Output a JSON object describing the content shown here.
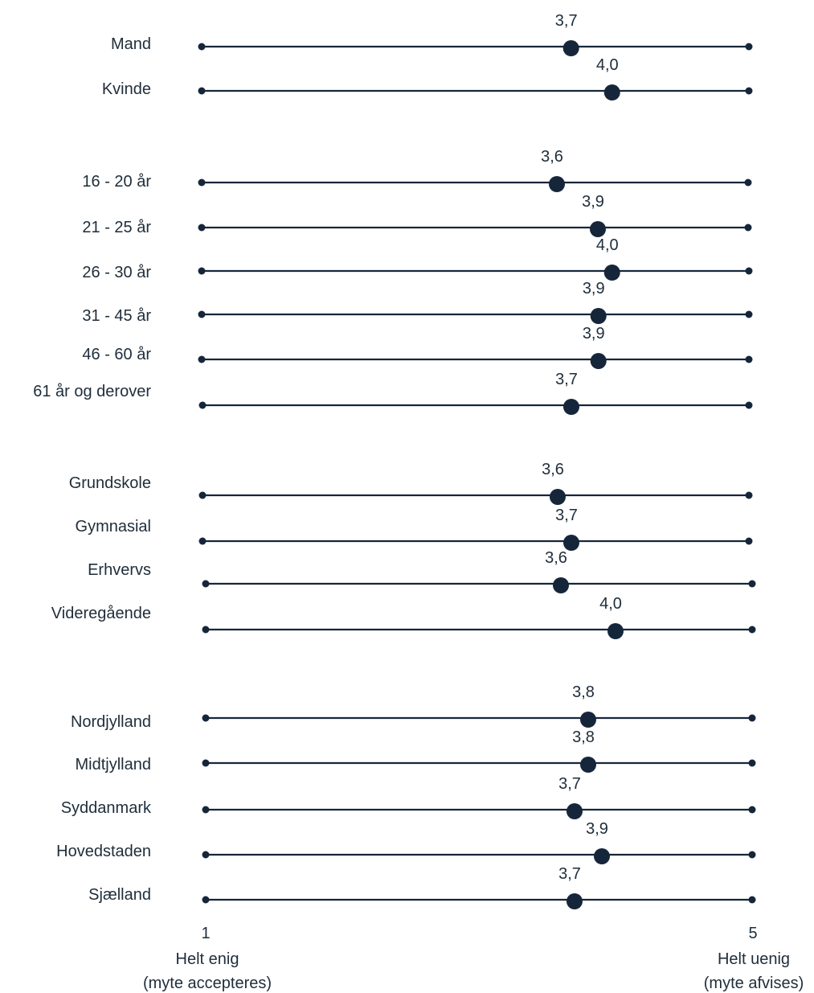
{
  "chart_data": {
    "type": "scatter",
    "xlim": [
      1,
      5
    ],
    "colors": {
      "ink": "#16263a",
      "text": "#1f2d3a"
    },
    "axis": {
      "min_tick": "1",
      "max_tick": "5",
      "left_caption": [
        "Helt enig",
        "(myte accepteres)"
      ],
      "right_caption": [
        "Helt uenig",
        "(myte afvises)"
      ]
    },
    "groups": [
      {
        "rows": [
          {
            "label": "Mand",
            "value": 3.7,
            "value_label": "3,7"
          },
          {
            "label": "Kvinde",
            "value": 4.0,
            "value_label": "4,0"
          }
        ]
      },
      {
        "rows": [
          {
            "label": "16 - 20 år",
            "value": 3.6,
            "value_label": "3,6"
          },
          {
            "label": "21 - 25 år",
            "value": 3.9,
            "value_label": "3,9"
          },
          {
            "label": "26 - 30 år",
            "value": 4.0,
            "value_label": "4,0"
          },
          {
            "label": "31 - 45 år",
            "value": 3.9,
            "value_label": "3,9"
          },
          {
            "label": "46 - 60 år",
            "value": 3.9,
            "value_label": "3,9"
          },
          {
            "label": "61 år og derover",
            "value": 3.7,
            "value_label": "3,7"
          }
        ]
      },
      {
        "rows": [
          {
            "label": "Grundskole",
            "value": 3.6,
            "value_label": "3,6"
          },
          {
            "label": "Gymnasial",
            "value": 3.7,
            "value_label": "3,7"
          },
          {
            "label": "Erhvervs",
            "value": 3.6,
            "value_label": "3,6"
          },
          {
            "label": "Videregående",
            "value": 4.0,
            "value_label": "4,0"
          }
        ]
      },
      {
        "rows": [
          {
            "label": "Nordjylland",
            "value": 3.8,
            "value_label": "3,8"
          },
          {
            "label": "Midtjylland",
            "value": 3.8,
            "value_label": "3,8"
          },
          {
            "label": "Syddanmark",
            "value": 3.7,
            "value_label": "3,7"
          },
          {
            "label": "Hovedstaden",
            "value": 3.9,
            "value_label": "3,9"
          },
          {
            "label": "Sjælland",
            "value": 3.7,
            "value_label": "3,7"
          }
        ]
      }
    ]
  }
}
